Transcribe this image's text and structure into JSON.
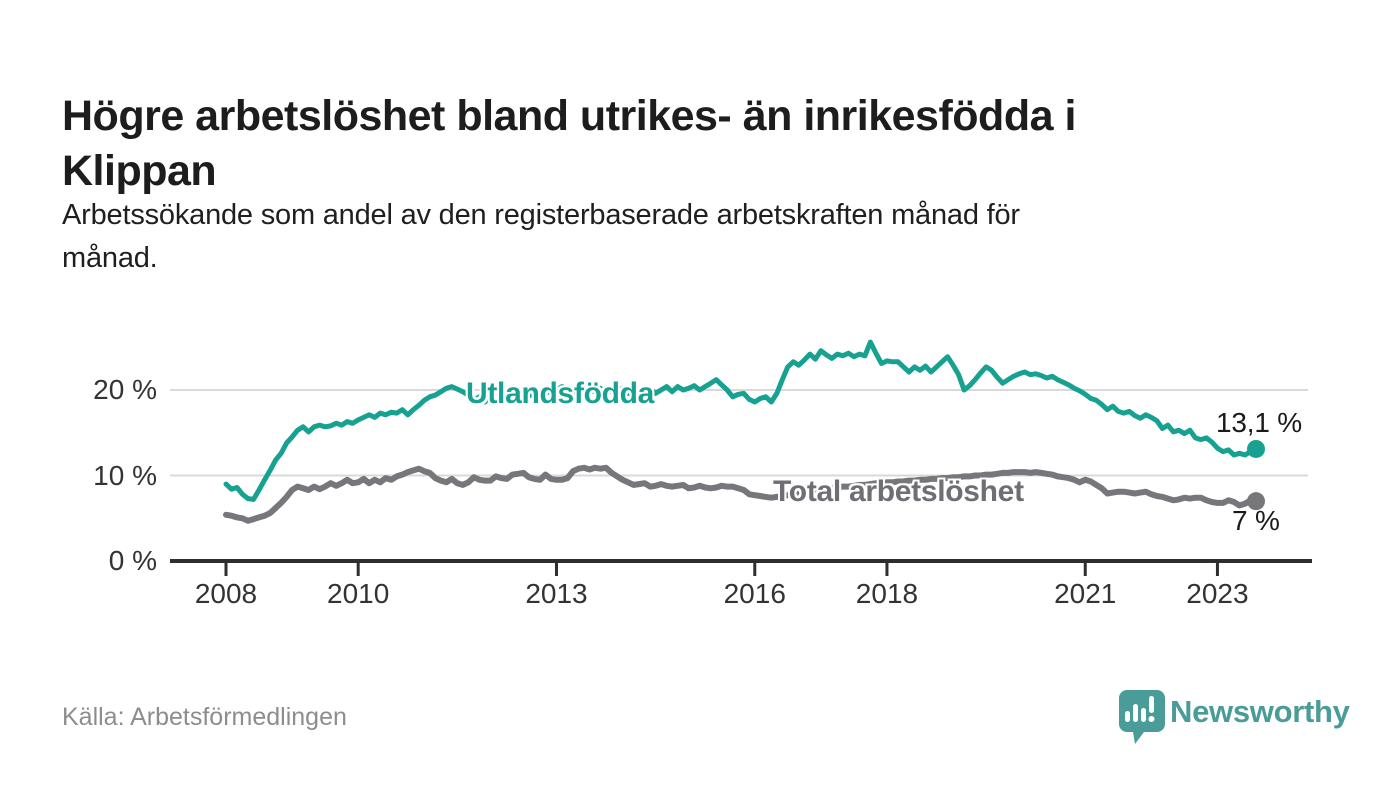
{
  "header": {
    "title": "Högre arbetslöshet bland utrikes- än inrikesfödda i Klippan",
    "title_lines": [
      "Högre arbetslöshet bland utrikes- än inrikesfödda i",
      "Klippan"
    ],
    "subtitle": "Arbetssökande som andel av den registerbaserade arbetskraften månad för månad.",
    "subtitle_lines": [
      "Arbetssökande som andel av den registerbaserade arbetskraften månad för",
      "månad."
    ]
  },
  "footer": {
    "source": "Källa: Arbetsförmedlingen",
    "brand_name": "Newsworthy",
    "brand_icon": "bar-chart-speech-bubble-icon"
  },
  "colors": {
    "series_teal": "#16a191",
    "series_gray": "#76767b",
    "label_gray": "#6e6e74",
    "title_text": "#1d1d1d",
    "axis_text": "#333333",
    "gridline": "#d9d9d9",
    "axis_line": "#2e2e2e",
    "source_text": "#8d8d8d",
    "brand_teal": "#4a9c98"
  },
  "chart_data": {
    "type": "line",
    "title": "Högre arbetslöshet bland utrikes- än inrikesfödda i Klippan",
    "x_unit": "month",
    "x_start": "2008-01",
    "x_end": "2023-08",
    "grid": "horizontal",
    "legend_position": "inline-labels-on-lines",
    "ylim": [
      0,
      26.5
    ],
    "y_ticks": [
      {
        "value": 0,
        "label": "0 %"
      },
      {
        "value": 10,
        "label": "10 %"
      },
      {
        "value": 20,
        "label": "20 %"
      }
    ],
    "x_ticks": [
      {
        "month_index": 0,
        "label": "2008"
      },
      {
        "month_index": 24,
        "label": "2010"
      },
      {
        "month_index": 60,
        "label": "2013"
      },
      {
        "month_index": 96,
        "label": "2016"
      },
      {
        "month_index": 120,
        "label": "2018"
      },
      {
        "month_index": 156,
        "label": "2021"
      },
      {
        "month_index": 180,
        "label": "2023"
      }
    ],
    "series": [
      {
        "name": "Utlandsfödda",
        "color": "#16a191",
        "end_label": "13,1 %",
        "end_value": 13.1,
        "values": [
          9.0,
          8.4,
          8.6,
          7.8,
          7.3,
          7.2,
          8.3,
          9.5,
          10.6,
          11.8,
          12.6,
          13.8,
          14.5,
          15.3,
          15.7,
          15.1,
          15.7,
          15.9,
          15.7,
          15.8,
          16.1,
          15.9,
          16.3,
          16.1,
          16.5,
          16.8,
          17.1,
          16.8,
          17.3,
          17.1,
          17.4,
          17.3,
          17.7,
          17.1,
          17.7,
          18.2,
          18.8,
          19.2,
          19.4,
          19.8,
          20.2,
          20.4,
          20.1,
          19.8,
          19.4,
          18.8,
          19.2,
          18.6,
          19.2,
          18.6,
          19.1,
          18.8,
          19.3,
          19.0,
          19.6,
          19.3,
          19.8,
          19.5,
          20.0,
          19.6,
          20.0,
          20.4,
          20.0,
          19.4,
          19.8,
          20.4,
          20.0,
          19.8,
          20.2,
          19.6,
          20.0,
          19.8,
          20.2,
          19.6,
          20.0,
          19.4,
          19.8,
          20.2,
          19.6,
          20.0,
          20.4,
          19.8,
          20.4,
          20.0,
          20.2,
          20.5,
          20.0,
          20.4,
          20.8,
          21.2,
          20.6,
          20.0,
          19.2,
          19.5,
          19.6,
          18.9,
          18.6,
          19.0,
          19.2,
          18.6,
          19.6,
          21.2,
          22.7,
          23.3,
          22.9,
          23.5,
          24.2,
          23.6,
          24.6,
          24.1,
          23.7,
          24.2,
          24.0,
          24.3,
          23.9,
          24.2,
          24.0,
          25.6,
          24.3,
          23.1,
          23.4,
          23.3,
          23.3,
          22.7,
          22.1,
          22.7,
          22.3,
          22.8,
          22.1,
          22.7,
          23.3,
          23.9,
          22.9,
          21.8,
          20.0,
          20.5,
          21.2,
          22.0,
          22.7,
          22.3,
          21.5,
          20.8,
          21.2,
          21.6,
          21.9,
          22.1,
          21.8,
          21.9,
          21.7,
          21.4,
          21.6,
          21.2,
          20.9,
          20.6,
          20.2,
          19.9,
          19.5,
          19.0,
          18.8,
          18.3,
          17.7,
          18.1,
          17.5,
          17.3,
          17.5,
          17.0,
          16.7,
          17.1,
          16.8,
          16.4,
          15.5,
          15.9,
          15.1,
          15.3,
          14.9,
          15.3,
          14.4,
          14.2,
          14.4,
          13.9,
          13.2,
          12.8,
          13.0,
          12.4,
          12.6,
          12.4,
          12.8,
          13.1
        ]
      },
      {
        "name": "Total arbetslöshet",
        "color": "#76767b",
        "end_label": "7 %",
        "end_value": 7.0,
        "values": [
          5.4,
          5.3,
          5.1,
          5.0,
          4.7,
          4.9,
          5.1,
          5.3,
          5.6,
          6.2,
          6.8,
          7.5,
          8.3,
          8.7,
          8.5,
          8.3,
          8.7,
          8.4,
          8.7,
          9.1,
          8.8,
          9.1,
          9.5,
          9.1,
          9.2,
          9.6,
          9.1,
          9.5,
          9.2,
          9.7,
          9.5,
          9.9,
          10.1,
          10.4,
          10.6,
          10.8,
          10.5,
          10.3,
          9.7,
          9.4,
          9.2,
          9.6,
          9.1,
          8.9,
          9.2,
          9.8,
          9.5,
          9.4,
          9.4,
          9.9,
          9.7,
          9.6,
          10.1,
          10.2,
          10.3,
          9.8,
          9.6,
          9.5,
          10.1,
          9.6,
          9.5,
          9.5,
          9.7,
          10.5,
          10.8,
          10.9,
          10.7,
          10.9,
          10.8,
          10.9,
          10.3,
          9.9,
          9.5,
          9.2,
          8.9,
          9.0,
          9.1,
          8.7,
          8.8,
          9.0,
          8.8,
          8.7,
          8.8,
          8.9,
          8.5,
          8.6,
          8.8,
          8.6,
          8.5,
          8.6,
          8.8,
          8.7,
          8.7,
          8.5,
          8.3,
          7.8,
          7.7,
          7.6,
          7.5,
          7.4,
          7.5,
          7.6,
          7.7,
          7.9,
          8.0,
          8.1,
          8.2,
          8.3,
          8.4,
          8.5,
          8.5,
          8.6,
          8.7,
          8.7,
          8.8,
          8.9,
          8.9,
          9.0,
          9.1,
          9.1,
          9.2,
          9.2,
          9.3,
          9.3,
          9.4,
          9.4,
          9.5,
          9.5,
          9.6,
          9.6,
          9.7,
          9.7,
          9.8,
          9.8,
          9.9,
          9.9,
          10.0,
          10.0,
          10.1,
          10.1,
          10.2,
          10.3,
          10.3,
          10.4,
          10.4,
          10.4,
          10.3,
          10.4,
          10.3,
          10.2,
          10.1,
          9.9,
          9.8,
          9.7,
          9.5,
          9.2,
          9.5,
          9.3,
          8.9,
          8.5,
          7.9,
          8.0,
          8.1,
          8.1,
          8.0,
          7.9,
          8.0,
          8.1,
          7.8,
          7.6,
          7.5,
          7.3,
          7.1,
          7.2,
          7.4,
          7.3,
          7.4,
          7.4,
          7.1,
          6.9,
          6.8,
          6.8,
          7.1,
          6.9,
          6.5,
          6.7,
          7.1,
          7.0
        ]
      }
    ]
  }
}
